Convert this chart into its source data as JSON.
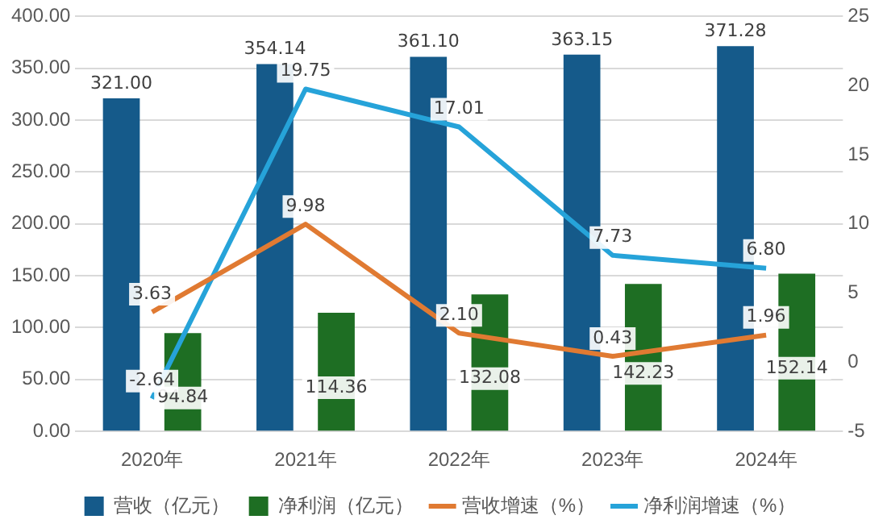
{
  "chart_data": {
    "type": "bar",
    "categories": [
      "2020年",
      "2021年",
      "2022年",
      "2023年",
      "2024年"
    ],
    "series": [
      {
        "name": "营收（亿元）",
        "color": "#155a8a",
        "values": [
          321.0,
          354.14,
          361.1,
          363.15,
          371.28
        ],
        "value_labels": [
          "321.00",
          "354.14",
          "361.10",
          "363.15",
          "371.28"
        ]
      },
      {
        "name": "净利润（亿元）",
        "color": "#1e6e23",
        "values": [
          94.84,
          114.36,
          132.08,
          142.23,
          152.14
        ],
        "value_labels": [
          "94.84",
          "114.36",
          "132.08",
          "142.23",
          "152.14"
        ]
      },
      {
        "name": "营收增速（%）",
        "type": "line",
        "axis": "y2",
        "color": "#e07a32",
        "values": [
          3.63,
          9.98,
          2.1,
          0.43,
          1.96
        ],
        "value_labels": [
          "3.63",
          "9.98",
          "2.10",
          "0.43",
          "1.96"
        ]
      },
      {
        "name": "净利润增速（%）",
        "type": "line",
        "axis": "y2",
        "color": "#26a3d9",
        "values": [
          -2.64,
          19.75,
          17.01,
          7.73,
          6.8
        ],
        "value_labels": [
          "-2.64",
          "19.75",
          "17.01",
          "7.73",
          "6.80"
        ]
      }
    ],
    "ylim": [
      0,
      400
    ],
    "yticks": [
      {
        "value": 0,
        "label": "0.00"
      },
      {
        "value": 50,
        "label": "50.00"
      },
      {
        "value": 100,
        "label": "100.00"
      },
      {
        "value": 150,
        "label": "150.00"
      },
      {
        "value": 200,
        "label": "200.00"
      },
      {
        "value": 250,
        "label": "250.00"
      },
      {
        "value": 300,
        "label": "300.00"
      },
      {
        "value": 350,
        "label": "350.00"
      },
      {
        "value": 400,
        "label": "400.00"
      }
    ],
    "y2lim": [
      -5,
      25
    ],
    "y2ticks": [
      -5,
      0,
      5,
      10,
      15,
      20,
      25
    ],
    "grid": "y",
    "legend": "bottom",
    "marker": "none",
    "line_style": "solid"
  }
}
